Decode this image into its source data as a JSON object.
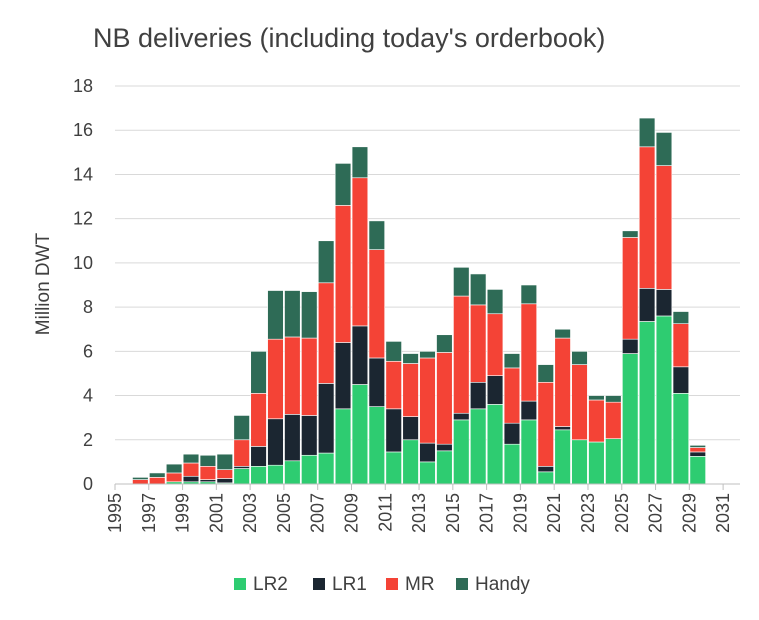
{
  "chart_data": {
    "type": "bar",
    "stacked": true,
    "title": "NB deliveries (including today's orderbook)",
    "xlabel": "",
    "ylabel": "Million DWT",
    "ylim": [
      0,
      18
    ],
    "yticks": [
      0,
      2,
      4,
      6,
      8,
      10,
      12,
      14,
      16,
      18
    ],
    "xticks": [
      "1995",
      "1997",
      "1999",
      "2001",
      "2003",
      "2005",
      "2007",
      "2009",
      "2011",
      "2013",
      "2015",
      "2017",
      "2019",
      "2021",
      "2023",
      "2025",
      "2027",
      "2029",
      "2031"
    ],
    "grid": true,
    "legend_position": "bottom",
    "categories": [
      1995,
      1996,
      1997,
      1998,
      1999,
      2000,
      2001,
      2002,
      2003,
      2004,
      2005,
      2006,
      2007,
      2008,
      2009,
      2010,
      2011,
      2012,
      2013,
      2014,
      2015,
      2016,
      2017,
      2018,
      2019,
      2020,
      2021,
      2022,
      2023,
      2024,
      2025,
      2026,
      2027,
      2028,
      2029,
      2030,
      2031
    ],
    "series": [
      {
        "name": "LR2",
        "color": "#2ecc71",
        "values": [
          0,
          0,
          0,
          0.1,
          0.1,
          0.1,
          0.05,
          0.7,
          0.8,
          0.85,
          1.05,
          1.3,
          1.4,
          3.4,
          4.5,
          3.5,
          1.45,
          2.0,
          1.0,
          1.5,
          2.9,
          3.4,
          3.6,
          1.8,
          2.9,
          0.55,
          2.45,
          2.0,
          1.9,
          2.05,
          5.9,
          7.35,
          7.6,
          4.1,
          1.25,
          0,
          0
        ]
      },
      {
        "name": "LR1",
        "color": "#1b2631",
        "values": [
          0,
          0,
          0,
          0,
          0.25,
          0.1,
          0.2,
          0.1,
          0.9,
          2.1,
          2.1,
          1.8,
          3.15,
          3.0,
          2.65,
          2.2,
          1.95,
          1.05,
          0.85,
          0.3,
          0.3,
          1.2,
          1.3,
          0.95,
          0.85,
          0.25,
          0.15,
          0,
          0,
          0,
          0.65,
          1.5,
          1.2,
          1.2,
          0.2,
          0,
          0
        ]
      },
      {
        "name": "MR",
        "color": "#f44336",
        "values": [
          0,
          0.2,
          0.3,
          0.4,
          0.6,
          0.6,
          0.4,
          1.2,
          2.4,
          3.6,
          3.5,
          3.5,
          4.55,
          6.2,
          6.7,
          4.9,
          2.15,
          2.4,
          3.85,
          4.15,
          5.3,
          3.5,
          2.8,
          2.5,
          4.4,
          3.8,
          4.0,
          3.4,
          1.9,
          1.65,
          4.6,
          6.4,
          5.6,
          1.95,
          0.2,
          0,
          0
        ]
      },
      {
        "name": "Handy",
        "color": "#2e6b56",
        "values": [
          0,
          0.1,
          0.2,
          0.4,
          0.4,
          0.5,
          0.7,
          1.1,
          1.9,
          2.2,
          2.1,
          2.1,
          1.9,
          1.9,
          1.4,
          1.3,
          0.9,
          0.45,
          0.3,
          0.8,
          1.3,
          1.4,
          1.1,
          0.65,
          0.85,
          0.8,
          0.4,
          0.6,
          0.2,
          0.3,
          0.3,
          1.3,
          1.5,
          0.55,
          0.1,
          0,
          0
        ]
      }
    ]
  }
}
